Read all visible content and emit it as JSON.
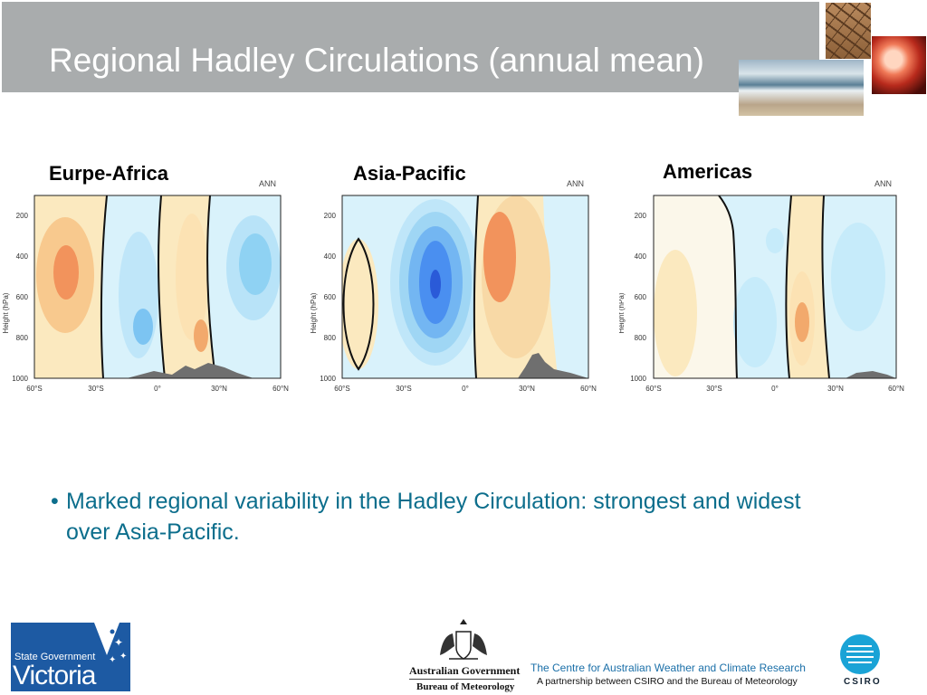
{
  "slide": {
    "title": "Regional Hadley Circulations (annual mean)",
    "bullet": "Marked regional variability in the Hadley Circulation: strongest and widest over Asia-Pacific."
  },
  "panels": [
    {
      "title": "Eurpe-Africa",
      "season": "ANN"
    },
    {
      "title": "Asia-Pacific",
      "season": "ANN"
    },
    {
      "title": "Americas",
      "season": "ANN"
    }
  ],
  "axes": {
    "ylabel": "Height (hPa)",
    "yticks": [
      "200",
      "400",
      "600",
      "800",
      "1000"
    ],
    "xticks": [
      "60°S",
      "30°S",
      "0°",
      "30°N",
      "60°N"
    ]
  },
  "footer": {
    "victoria_small": "State Government",
    "victoria_large": "Victoria",
    "gov_name": "Australian Government",
    "bom_name": "Bureau of Meteorology",
    "cawcr_title": "The Centre for Australian Weather and Climate Research",
    "cawcr_sub": "A partnership between CSIRO and the Bureau of Meteorology",
    "csiro": "CSIRO"
  },
  "colors": {
    "title_bar": "#a9acad",
    "bullet_text": "#0c6e8c",
    "positive_fill": "#fbe9bf",
    "positive_mid": "#f8c98e",
    "positive_core": "#f2935c",
    "negative_fill": "#d9f2fb",
    "negative_mid": "#9fd6f4",
    "negative_core": "#4a8ff0",
    "terrain": "#6f6f6f",
    "victoria_blue": "#1d5aa3"
  }
}
